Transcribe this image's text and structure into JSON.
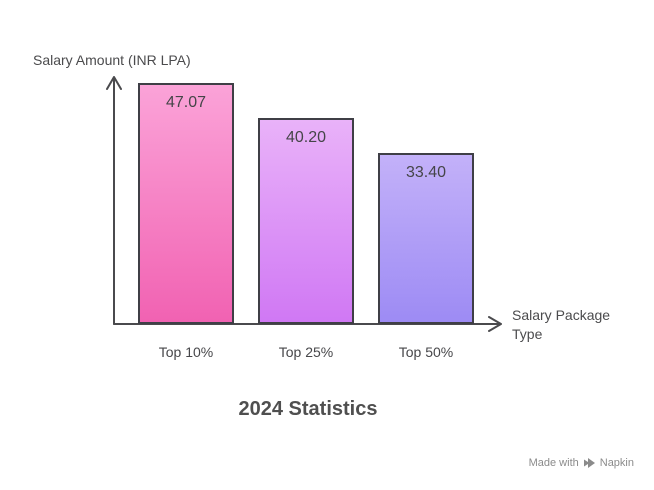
{
  "chart_data": {
    "type": "bar",
    "title": "2024 Statistics",
    "ylabel": "Salary Amount (INR LPA)",
    "xlabel": "Salary Package Type",
    "categories": [
      "Top 10%",
      "Top 25%",
      "Top 50%"
    ],
    "values": [
      47.07,
      40.2,
      33.4
    ],
    "value_labels": [
      "47.07",
      "40.20",
      "33.40"
    ],
    "ylim": [
      0,
      47.07
    ],
    "grid": false,
    "legend": "none",
    "bar_gradients": [
      {
        "top": "#fba3d8",
        "bottom": "#f162b2"
      },
      {
        "top": "#e9b2f9",
        "bottom": "#d078f4"
      },
      {
        "top": "#c3b1f9",
        "bottom": "#9d8bf4"
      }
    ],
    "bar_border_color": "#3f3f46",
    "axis_color": "#4a4a4d"
  },
  "watermark": {
    "prefix": "Made with",
    "brand": "Napkin",
    "color": "#8b8b8b"
  }
}
